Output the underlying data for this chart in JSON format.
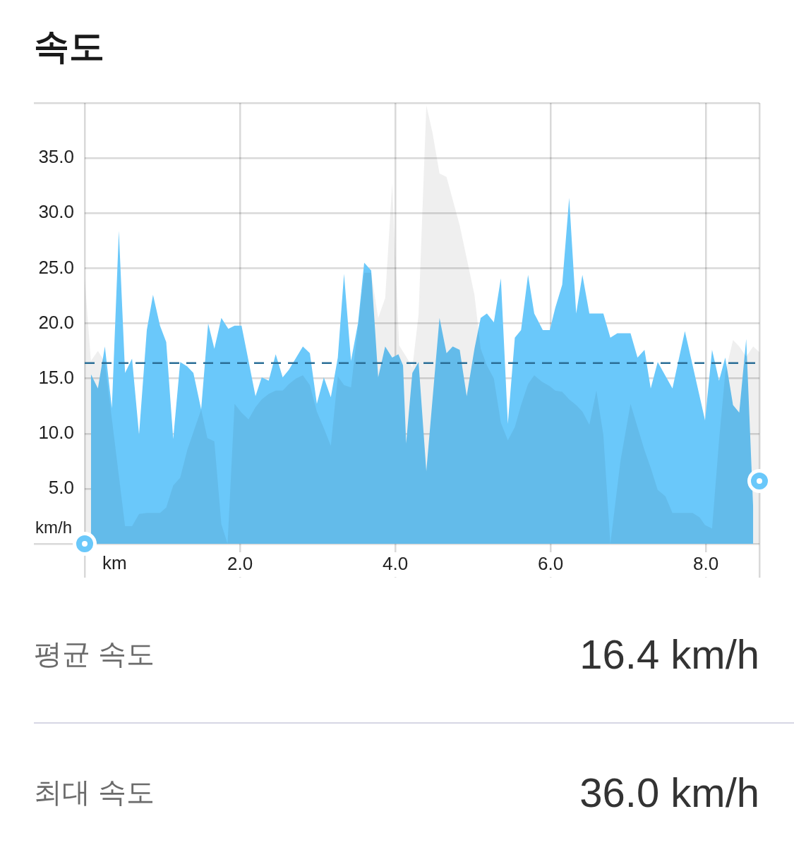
{
  "chart_data": [
    {
      "type": "area",
      "title": "속도",
      "xlabel": "km",
      "ylabel": "km/h",
      "grid": true,
      "xlim": [
        0,
        8.69
      ],
      "xticks": [
        {
          "value": 0,
          "label": null
        },
        {
          "value": 2,
          "label": "2.0"
        },
        {
          "value": 4,
          "label": "4.0"
        },
        {
          "value": 6,
          "label": "6.0"
        },
        {
          "value": 8,
          "label": "8.0"
        },
        {
          "value": 8.69,
          "label": null
        }
      ],
      "ylim": [
        0,
        40
      ],
      "yticks": [
        {
          "value": 0,
          "label": null
        },
        {
          "value": 5,
          "label": "5.0"
        },
        {
          "value": 10,
          "label": "10.0"
        },
        {
          "value": 15,
          "label": "15.0"
        },
        {
          "value": 20,
          "label": "20.0"
        },
        {
          "value": 25,
          "label": "25.0"
        },
        {
          "value": 30,
          "label": "30.0"
        },
        {
          "value": 35,
          "label": "35.0"
        },
        {
          "value": 40,
          "label": null
        }
      ],
      "ref_lines": [
        {
          "axis": "y",
          "value": 16.4,
          "color": "#2a6e96",
          "line_style": "dashed"
        }
      ],
      "series": [
        {
          "type": "area",
          "color": "#6ac8fa",
          "x": [
            0.08,
            0.17,
            0.26,
            0.35,
            0.44,
            0.52,
            0.61,
            0.7,
            0.8,
            0.88,
            0.97,
            1.05,
            1.14,
            1.23,
            1.32,
            1.4,
            1.5,
            1.59,
            1.67,
            1.76,
            1.85,
            1.93,
            2.02,
            2.2,
            2.28,
            2.37,
            2.46,
            2.55,
            2.63,
            2.81,
            2.9,
            2.99,
            3.08,
            3.17,
            3.26,
            3.34,
            3.43,
            3.52,
            3.6,
            3.69,
            3.78,
            3.87,
            3.96,
            4.04,
            4.1,
            4.14,
            4.22,
            4.3,
            4.4,
            4.57,
            4.66,
            4.74,
            4.83,
            4.92,
            5.02,
            5.1,
            5.18,
            5.27,
            5.36,
            5.45,
            5.54,
            5.62,
            5.71,
            5.79,
            5.9,
            5.99,
            6.06,
            6.15,
            6.24,
            6.33,
            6.41,
            6.5,
            6.68,
            6.77,
            6.86,
            7.03,
            7.12,
            7.21,
            7.29,
            7.38,
            7.57,
            7.73,
            7.99,
            8.08,
            8.17,
            8.25,
            8.35,
            8.43,
            8.52,
            8.61
          ],
          "values": [
            15.4,
            14.1,
            17.9,
            12.3,
            28.4,
            15.5,
            16.8,
            9.9,
            19.4,
            22.6,
            19.8,
            18.3,
            9.5,
            16.5,
            16.1,
            15.5,
            12.2,
            20.0,
            17.7,
            20.5,
            19.5,
            19.8,
            19.8,
            13.4,
            15.1,
            14.8,
            17.2,
            15.1,
            15.8,
            17.9,
            17.3,
            12.7,
            15.1,
            13.3,
            16.9,
            24.5,
            16.6,
            20.0,
            25.5,
            24.8,
            15.1,
            17.9,
            16.9,
            17.2,
            16.2,
            9.1,
            15.5,
            16.5,
            6.6,
            20.5,
            17.3,
            17.9,
            17.6,
            13.4,
            17.7,
            20.5,
            20.9,
            20.1,
            24.1,
            10.9,
            18.7,
            19.4,
            24.4,
            20.9,
            19.4,
            19.4,
            21.4,
            23.5,
            31.4,
            20.9,
            24.4,
            20.9,
            20.9,
            18.7,
            19.1,
            19.1,
            16.9,
            17.6,
            14.1,
            16.5,
            14.1,
            19.3,
            11.2,
            17.6,
            14.8,
            16.9,
            12.6,
            11.9,
            18.6,
            3.2
          ]
        },
        {
          "type": "area",
          "color": "#efefef",
          "x": [
            0,
            0.08,
            0.17,
            0.26,
            0.52,
            0.61,
            0.7,
            0.8,
            0.97,
            1.05,
            1.14,
            1.23,
            1.32,
            1.5,
            1.58,
            1.67,
            1.76,
            1.84,
            1.93,
            2.02,
            2.11,
            2.2,
            2.28,
            2.37,
            2.46,
            2.55,
            2.63,
            2.72,
            2.81,
            2.9,
            2.99,
            3.08,
            3.17,
            3.26,
            3.34,
            3.43,
            3.6,
            3.69,
            3.78,
            3.87,
            3.96,
            4.05,
            4.14,
            4.22,
            4.3,
            4.4,
            4.48,
            4.57,
            4.66,
            4.83,
            5.02,
            5.1,
            5.18,
            5.27,
            5.36,
            5.45,
            5.54,
            5.62,
            5.71,
            5.79,
            5.89,
            5.99,
            6.06,
            6.15,
            6.24,
            6.33,
            6.41,
            6.5,
            6.59,
            6.68,
            6.77,
            6.9,
            7.03,
            7.12,
            7.21,
            7.29,
            7.38,
            7.48,
            7.57,
            7.83,
            7.92,
            7.99,
            8.08,
            8.17,
            8.25,
            8.35,
            8.43,
            8.52,
            8.61,
            8.69
          ],
          "values": [
            24.1,
            16.6,
            17.5,
            16.5,
            1.6,
            1.6,
            2.7,
            2.8,
            2.8,
            3.3,
            5.3,
            6.0,
            8.5,
            12.2,
            9.6,
            9.3,
            1.8,
            0,
            12.7,
            11.9,
            11.3,
            12.4,
            13.1,
            13.6,
            13.9,
            13.9,
            14.5,
            15.0,
            15.3,
            14.4,
            12.0,
            10.5,
            8.9,
            15.2,
            14.4,
            14.2,
            24.6,
            24.6,
            20.5,
            22.3,
            32.7,
            18.0,
            17.0,
            16.0,
            20.8,
            39.8,
            37.3,
            33.6,
            33.3,
            28.9,
            22.6,
            17.7,
            16.2,
            15.0,
            11.0,
            9.4,
            10.6,
            12.6,
            14.5,
            15.3,
            14.7,
            14.3,
            13.9,
            13.8,
            13.1,
            12.6,
            12.0,
            10.8,
            13.9,
            9.9,
            0,
            7.5,
            12.7,
            10.6,
            8.5,
            6.9,
            4.9,
            4.3,
            2.8,
            2.8,
            2.4,
            1.7,
            1.4,
            9.4,
            15.5,
            18.5,
            17.9,
            17.0,
            17.9,
            17.4
          ]
        },
        {
          "type": "scatter",
          "color": "#6ac8fa",
          "marker": "circle",
          "x": [
            0,
            8.69
          ],
          "values": [
            0,
            5.7
          ]
        }
      ]
    },
    {
      "type": "other",
      "annotations": [
        "평균 속도",
        "16.4 km/h",
        "최대 속도",
        "36.0 km/h"
      ]
    }
  ]
}
